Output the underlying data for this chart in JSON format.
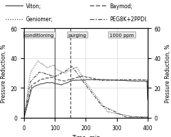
{
  "xlabel": "Time, min",
  "ylabel_left": "Pressure Reduction, %",
  "ylabel_right": "Pressure Reduction, %",
  "xlim": [
    0,
    400
  ],
  "ylim": [
    0,
    60
  ],
  "legend_entries": [
    "Viton;",
    "Baymod;",
    "Geniomer;",
    "PEG8K+2PPDI."
  ],
  "conditioning_x": 100,
  "purging_x": 150,
  "line_color": "#444444",
  "box_color": "#e8e8e8",
  "grid_color": "#aaaaaa"
}
